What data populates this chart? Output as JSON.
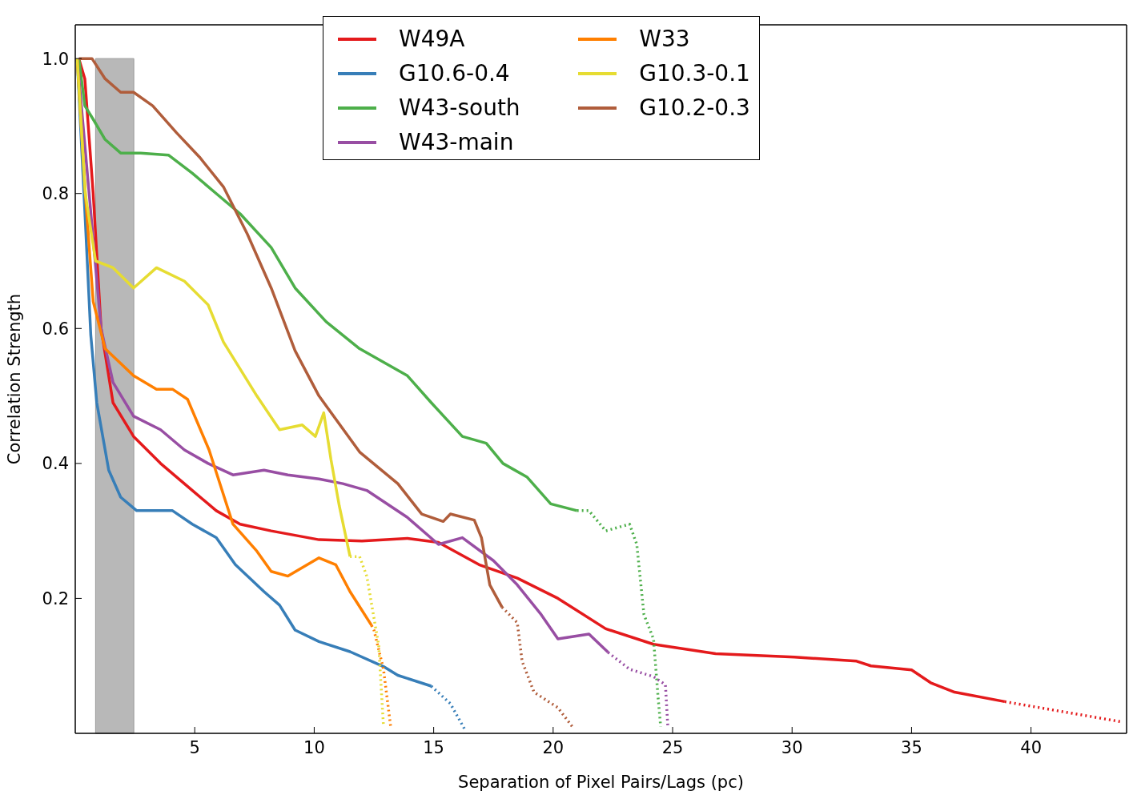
{
  "chart_data": {
    "type": "line",
    "xlabel": "Separation of Pixel Pairs/Lags (pc)",
    "ylabel": "Correlation Strength",
    "xlim": [
      0,
      44
    ],
    "ylim": [
      0,
      1.05
    ],
    "xticks": [
      5,
      10,
      15,
      20,
      25,
      30,
      35,
      40
    ],
    "yticks": [
      0.2,
      0.4,
      0.6,
      0.8,
      {
        "value": 1,
        "label": "1.0"
      }
    ],
    "legend": "top",
    "grid": false,
    "marker": "none",
    "bands": [
      {
        "axis": "x",
        "from": 0.85,
        "to": 2.45,
        "color": "#b8b8b8"
      }
    ],
    "series": [
      {
        "name": "W49A",
        "color": "#e41a1c",
        "line_style": "solid",
        "x": [
          0.15,
          0.4,
          0.75,
          1.08,
          1.58,
          2.44,
          3.57,
          4.9,
          5.9,
          6.9,
          8.2,
          10.2,
          12,
          13.9,
          15.2,
          16.9,
          18.5,
          20.2,
          22.2,
          24.2,
          26.8,
          30.1,
          32.7,
          33.3,
          35,
          35.8,
          36.8,
          38.9
        ],
        "values": [
          1.0,
          0.97,
          0.8,
          0.6,
          0.49,
          0.44,
          0.4,
          0.36,
          0.33,
          0.31,
          0.3,
          0.287,
          0.285,
          0.289,
          0.283,
          0.25,
          0.23,
          0.2,
          0.155,
          0.132,
          0.118,
          0.113,
          0.107,
          0.1,
          0.094,
          0.075,
          0.061,
          0.047
        ]
      },
      {
        "name": "G10.6-0.4",
        "color": "#377eb8",
        "line_style": "solid",
        "x": [
          0.08,
          0.42,
          0.65,
          0.9,
          1.4,
          1.9,
          2.57,
          4.07,
          4.9,
          5.9,
          6.7,
          7.9,
          8.55,
          9.2,
          10.2,
          11.5,
          12.9,
          13.5,
          14.9
        ],
        "values": [
          1.0,
          0.76,
          0.59,
          0.49,
          0.39,
          0.35,
          0.33,
          0.33,
          0.31,
          0.29,
          0.25,
          0.21,
          0.19,
          0.153,
          0.136,
          0.121,
          0.099,
          0.086,
          0.07
        ]
      },
      {
        "name": "W43-south",
        "color": "#4daf4a",
        "line_style": "solid",
        "x": [
          0.15,
          0.4,
          0.75,
          1.25,
          1.9,
          2.74,
          3.9,
          4.9,
          5.9,
          6.9,
          8.2,
          9.2,
          10.5,
          11.9,
          13.9,
          14.9,
          16.2,
          17.2,
          17.9,
          18.9,
          19.9,
          21
        ],
        "values": [
          1.0,
          0.93,
          0.91,
          0.88,
          0.86,
          0.86,
          0.857,
          0.83,
          0.8,
          0.77,
          0.72,
          0.66,
          0.61,
          0.57,
          0.53,
          0.49,
          0.44,
          0.43,
          0.4,
          0.38,
          0.34,
          0.33
        ]
      },
      {
        "name": "W43-main",
        "color": "#984ea3",
        "line_style": "solid",
        "x": [
          0.08,
          0.58,
          1.08,
          1.58,
          2.44,
          3.57,
          4.57,
          5.56,
          6.6,
          7.9,
          8.9,
          10.2,
          11.2,
          12.2,
          13.9,
          15.2,
          16.2,
          17.5,
          18.5,
          19.5,
          20.2,
          21.5,
          22.3
        ],
        "values": [
          1.0,
          0.8,
          0.6,
          0.52,
          0.47,
          0.45,
          0.42,
          0.4,
          0.383,
          0.39,
          0.383,
          0.377,
          0.37,
          0.36,
          0.32,
          0.28,
          0.29,
          0.256,
          0.22,
          0.176,
          0.14,
          0.147,
          0.12
        ]
      },
      {
        "name": "W33",
        "color": "#ff7f00",
        "line_style": "solid",
        "x": [
          0.08,
          0.42,
          0.75,
          1.25,
          2.44,
          3.4,
          4.07,
          4.7,
          5.6,
          6.6,
          7.6,
          8.2,
          8.9,
          10.2,
          10.9,
          11.5,
          12.4
        ],
        "values": [
          1.0,
          0.8,
          0.64,
          0.57,
          0.53,
          0.51,
          0.51,
          0.495,
          0.42,
          0.31,
          0.27,
          0.24,
          0.233,
          0.26,
          0.25,
          0.21,
          0.16
        ]
      },
      {
        "name": "G10.3-0.1",
        "color": "#e6dc32",
        "line_style": "solid",
        "x": [
          0.08,
          0.42,
          0.85,
          1.58,
          2.44,
          3.4,
          4.57,
          5.56,
          6.2,
          6.9,
          7.6,
          8.55,
          9.5,
          10.05,
          10.4,
          10.7,
          11.05,
          11.5
        ],
        "values": [
          1.0,
          0.8,
          0.7,
          0.69,
          0.66,
          0.69,
          0.67,
          0.635,
          0.58,
          0.54,
          0.5,
          0.45,
          0.457,
          0.44,
          0.475,
          0.406,
          0.337,
          0.262
        ]
      },
      {
        "name": "G10.2-0.3",
        "color": "#b05d3b",
        "line_style": "solid",
        "x": [
          0.15,
          0.7,
          1.25,
          1.9,
          2.44,
          3.24,
          4.24,
          5.2,
          6.2,
          7.2,
          8.2,
          9.2,
          10.2,
          11.9,
          13.5,
          14.5,
          15.4,
          15.7,
          16.7,
          17.0,
          17.35,
          17.86
        ],
        "values": [
          1.0,
          1.0,
          0.97,
          0.95,
          0.95,
          0.93,
          0.89,
          0.854,
          0.81,
          0.74,
          0.66,
          0.567,
          0.5,
          0.417,
          0.37,
          0.325,
          0.314,
          0.325,
          0.316,
          0.29,
          0.22,
          0.187
        ]
      },
      {
        "color": "#e41a1c",
        "line_style": "dotted",
        "x": [
          38.9,
          43.8
        ],
        "values": [
          0.047,
          0.017
        ]
      },
      {
        "color": "#377eb8",
        "line_style": "dotted",
        "x": [
          14.9,
          15.7,
          16.3
        ],
        "values": [
          0.07,
          0.044,
          0.006
        ]
      },
      {
        "color": "#4daf4a",
        "line_style": "dotted",
        "x": [
          21,
          21.5,
          22.2,
          23.2,
          23.5,
          23.8,
          24.2,
          24.4,
          24.5
        ],
        "values": [
          0.33,
          0.33,
          0.3,
          0.31,
          0.28,
          0.176,
          0.14,
          0.05,
          0.01
        ]
      },
      {
        "color": "#984ea3",
        "line_style": "dotted",
        "x": [
          22.3,
          23.2,
          24.2,
          24.7,
          24.8
        ],
        "values": [
          0.12,
          0.095,
          0.084,
          0.072,
          0.01
        ]
      },
      {
        "color": "#ff7f00",
        "line_style": "dotted",
        "x": [
          12.4,
          12.5,
          12.9,
          13.2
        ],
        "values": [
          0.16,
          0.153,
          0.095,
          0.01
        ]
      },
      {
        "color": "#e6dc32",
        "line_style": "dotted",
        "x": [
          11.5,
          11.9,
          12.2,
          12.7,
          12.9
        ],
        "values": [
          0.262,
          0.262,
          0.233,
          0.13,
          0.01
        ]
      },
      {
        "color": "#b05d3b",
        "line_style": "dotted",
        "x": [
          17.86,
          18.5,
          18.7,
          19.2,
          20.2,
          20.8
        ],
        "values": [
          0.187,
          0.164,
          0.107,
          0.061,
          0.038,
          0.01
        ]
      }
    ]
  }
}
